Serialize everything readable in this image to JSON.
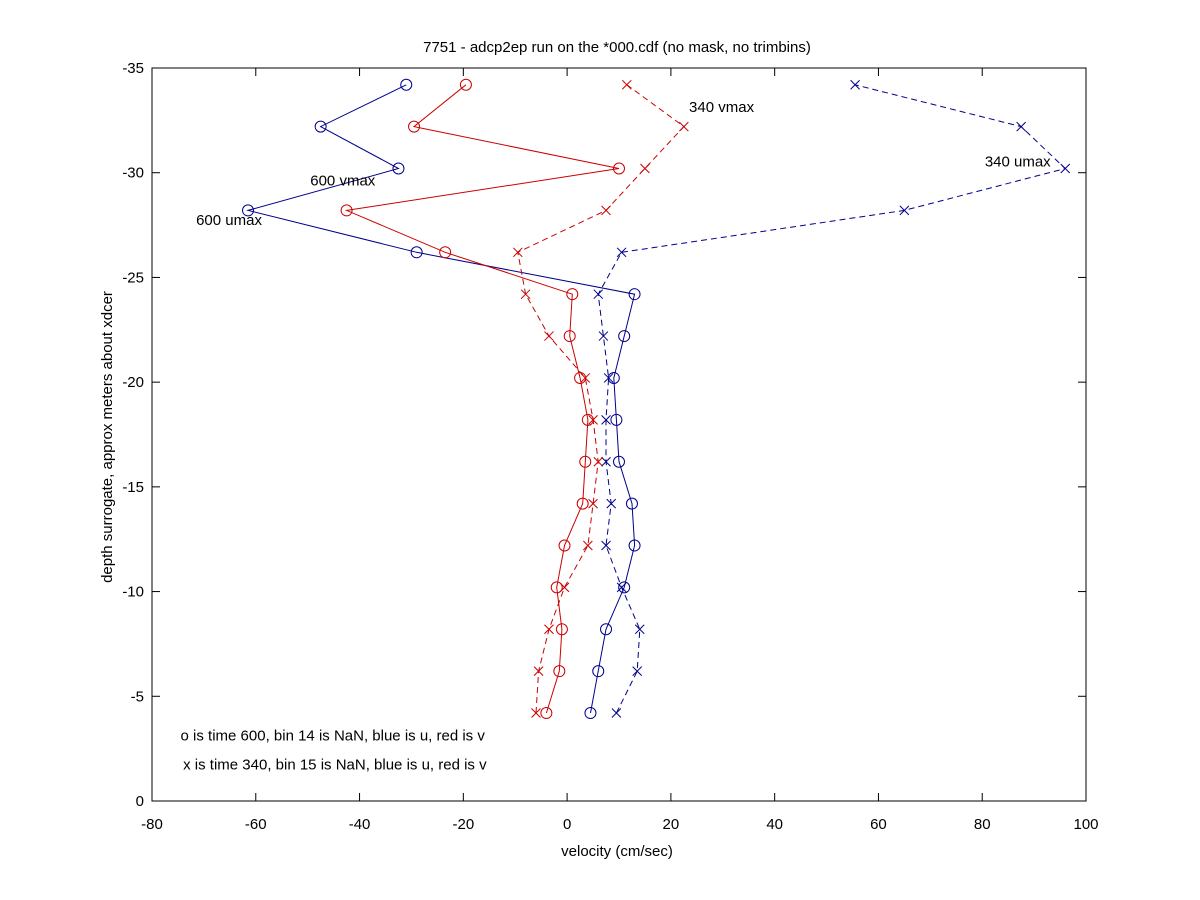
{
  "chart_data": {
    "type": "line",
    "title": "7751 - adcp2ep run on the *000.cdf (no mask, no trimbins)",
    "xlabel": "velocity (cm/sec)",
    "ylabel": "depth surrogate, approx meters about xdcer",
    "xlim": [
      -80,
      100
    ],
    "ylim": [
      0,
      -35
    ],
    "xticks": [
      -80,
      -60,
      -40,
      -20,
      0,
      20,
      40,
      60,
      80,
      100
    ],
    "yticks": [
      0,
      -5,
      -10,
      -15,
      -20,
      -25,
      -30,
      -35
    ],
    "grid": false,
    "colors": {
      "u": "#00008b",
      "v": "#cc0000",
      "axis": "#000000"
    },
    "series": [
      {
        "key": "u600",
        "color": "#00008b",
        "linestyle": "solid",
        "marker": "o",
        "x": [
          4.5,
          6,
          7.5,
          11,
          13,
          12.5,
          10,
          9.5,
          9,
          11,
          13,
          -29,
          -61.5,
          -32.5,
          -47.5,
          -31
        ],
        "y": [
          -4.2,
          -6.2,
          -8.2,
          -10.2,
          -12.2,
          -14.2,
          -16.2,
          -18.2,
          -20.2,
          -22.2,
          -24.2,
          -26.2,
          -28.2,
          -30.2,
          -32.2,
          -34.2
        ]
      },
      {
        "key": "v600",
        "color": "#cc0000",
        "linestyle": "solid",
        "marker": "o",
        "x": [
          -4,
          -1.5,
          -1,
          -2,
          -0.5,
          3,
          3.5,
          4,
          2.5,
          0.5,
          1,
          -23.5,
          -42.5,
          10,
          -29.5,
          -19.5
        ],
        "y": [
          -4.2,
          -6.2,
          -8.2,
          -10.2,
          -12.2,
          -14.2,
          -16.2,
          -18.2,
          -20.2,
          -22.2,
          -24.2,
          -26.2,
          -28.2,
          -30.2,
          -32.2,
          -34.2
        ]
      },
      {
        "key": "u340",
        "color": "#00008b",
        "linestyle": "dashed",
        "marker": "x",
        "x": [
          9.5,
          13.5,
          14,
          10.5,
          7.5,
          8.5,
          7.5,
          7.5,
          8,
          7,
          6,
          10.5,
          65,
          96,
          87.5,
          55.5
        ],
        "y": [
          -4.2,
          -6.2,
          -8.2,
          -10.2,
          -12.2,
          -14.2,
          -16.2,
          -18.2,
          -20.2,
          -22.2,
          -24.2,
          -26.2,
          -28.2,
          -30.2,
          -32.2,
          -34.2
        ]
      },
      {
        "key": "v340",
        "color": "#cc0000",
        "linestyle": "dashed",
        "marker": "x",
        "x": [
          -6,
          -5.5,
          -3.5,
          -0.5,
          4,
          5,
          6,
          5,
          3.5,
          -3.5,
          -8,
          -9.5,
          7.5,
          15,
          22.5,
          11.5
        ],
        "y": [
          -4.2,
          -6.2,
          -8.2,
          -10.2,
          -12.2,
          -14.2,
          -16.2,
          -18.2,
          -20.2,
          -22.2,
          -24.2,
          -26.2,
          -28.2,
          -30.2,
          -32.2,
          -34.2
        ]
      }
    ],
    "annotations": [
      {
        "text": "340 vmax",
        "x": 23.5,
        "y": -32.9
      },
      {
        "text": "340 umax",
        "x": 80.5,
        "y": -30.3
      },
      {
        "text": "600 vmax",
        "x": -49.5,
        "y": -29.4
      },
      {
        "text": "600 umax",
        "x": -71.5,
        "y": -27.5
      },
      {
        "text": "o is time 600, bin 14 is NaN, blue is u, red is v",
        "x": -74.5,
        "y": -2.9
      },
      {
        "text": "x is time 340, bin 15 is NaN, blue is u, red is v",
        "x": -74,
        "y": -1.5
      }
    ]
  }
}
